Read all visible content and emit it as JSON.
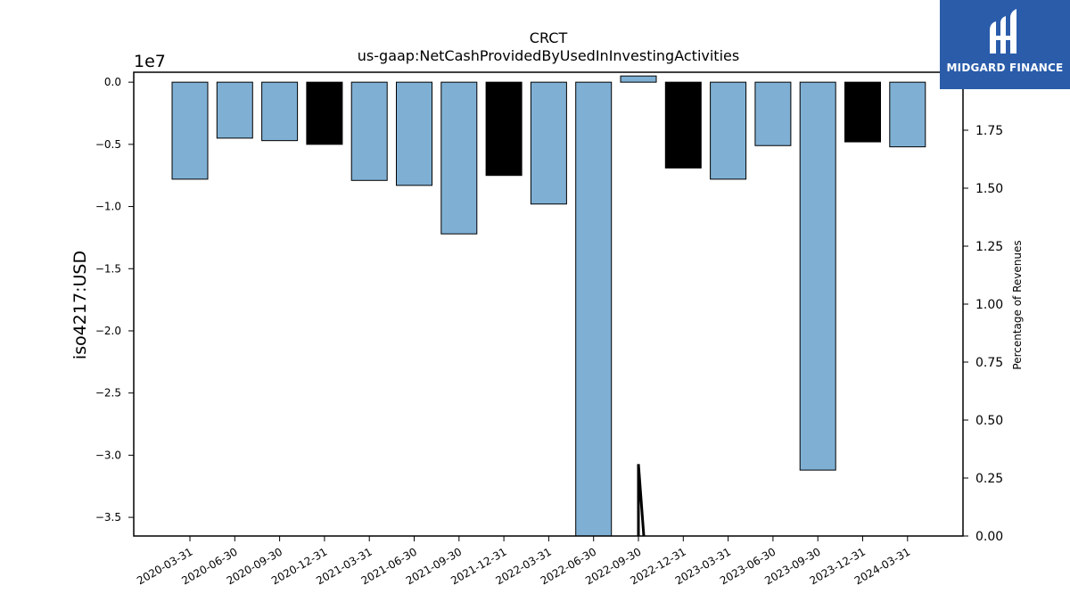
{
  "chart_data": {
    "type": "bar",
    "title": "CRCT",
    "subtitle": "us-gaap:NetCashProvidedByUsedInInvestingActivities",
    "ylabel": "iso4217:USD",
    "y_offset_label": "1e7",
    "y2label": "Percentage of Revenues",
    "ylim": [
      -36500000,
      800000
    ],
    "y2lim": [
      0.0,
      2.0
    ],
    "yticks": [
      0.0,
      -5000000,
      -10000000,
      -15000000,
      -20000000,
      -25000000,
      -30000000,
      -35000000
    ],
    "ytick_labels": [
      "0.0",
      "−0.5",
      "−1.0",
      "−1.5",
      "−2.0",
      "−2.5",
      "−3.0",
      "−3.5"
    ],
    "y2ticks": [
      0.0,
      0.25,
      0.5,
      0.75,
      1.0,
      1.25,
      1.5,
      1.75
    ],
    "y2tick_labels": [
      "0.00",
      "0.25",
      "0.50",
      "0.75",
      "1.00",
      "1.25",
      "1.50",
      "1.75"
    ],
    "categories": [
      "2020-03-31",
      "2020-06-30",
      "2020-09-30",
      "2020-12-31",
      "2021-03-31",
      "2021-06-30",
      "2021-09-30",
      "2021-12-31",
      "2022-03-31",
      "2022-06-30",
      "2022-09-30",
      "2022-12-31",
      "2023-03-31",
      "2023-06-30",
      "2023-09-30",
      "2023-12-31",
      "2024-03-31"
    ],
    "values": [
      -7800000,
      -4500000,
      -4700000,
      -5000000,
      -7900000,
      -8300000,
      -12200000,
      -7500000,
      -9800000,
      -36500000,
      500000,
      -6900000,
      -7800000,
      -5100000,
      -31200000,
      -4800000,
      -5200000
    ],
    "bar_colors": [
      "#7fb0d4",
      "#7fb0d4",
      "#7fb0d4",
      "#000000",
      "#7fb0d4",
      "#7fb0d4",
      "#7fb0d4",
      "#000000",
      "#7fb0d4",
      "#7fb0d4",
      "#7fb0d4",
      "#000000",
      "#7fb0d4",
      "#7fb0d4",
      "#7fb0d4",
      "#000000",
      "#7fb0d4"
    ],
    "secondary_line": {
      "color": "#000000",
      "x": [
        "2022-09-30",
        "2022-09-30",
        "2022-09-30"
      ],
      "y": [
        0.0,
        0.31,
        0.0
      ]
    },
    "grid": false
  },
  "logo": {
    "text": "MIDGARD FINANCE",
    "icon": "midgard-finance-logo-icon",
    "color": "#2a5caa"
  }
}
